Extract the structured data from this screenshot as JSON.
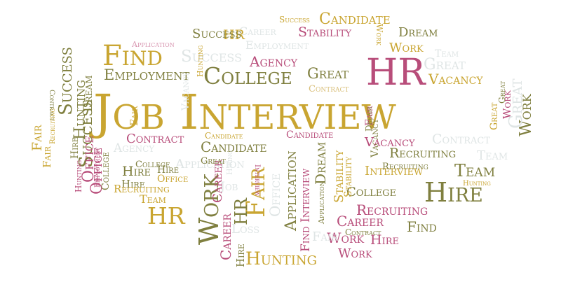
{
  "colors": {
    "gold": "#c9a531",
    "olive": "#7f7f3f",
    "rose": "#b84d7a",
    "pink": "#d896b0",
    "pale": "#dfe5e5",
    "sand": "#d9bf7a",
    "khaki": "#b8b070"
  },
  "cloud": {
    "words": [
      {
        "text": "Job Interview",
        "color": "gold"
      },
      {
        "text": "HR",
        "color": "rose"
      },
      {
        "text": "Find",
        "color": "gold"
      },
      {
        "text": "College",
        "color": "olive"
      },
      {
        "text": "Employment",
        "color": "olive"
      },
      {
        "text": "Hire",
        "color": "olive"
      },
      {
        "text": "Team",
        "color": "olive"
      },
      {
        "text": "Work",
        "color": "olive"
      },
      {
        "text": "HR",
        "color": "gold"
      },
      {
        "text": "Hunting",
        "color": "gold"
      },
      {
        "text": "Fair",
        "color": "gold"
      },
      {
        "text": "Candidate",
        "color": "gold"
      },
      {
        "text": "Stability",
        "color": "rose"
      },
      {
        "text": "Dream",
        "color": "olive"
      },
      {
        "text": "Work",
        "color": "gold"
      },
      {
        "text": "Agency",
        "color": "rose"
      },
      {
        "text": "Great",
        "color": "olive"
      },
      {
        "text": "Vacancy",
        "color": "gold"
      },
      {
        "text": "Recruiting",
        "color": "olive"
      },
      {
        "text": "Recruiting",
        "color": "rose"
      },
      {
        "text": "Interview",
        "color": "gold"
      },
      {
        "text": "College",
        "color": "olive"
      },
      {
        "text": "Candidate",
        "color": "olive"
      },
      {
        "text": "Contract",
        "color": "rose"
      },
      {
        "text": "Success",
        "color": "olive"
      },
      {
        "text": "Office",
        "color": "rose"
      },
      {
        "text": "Hunting",
        "color": "olive"
      },
      {
        "text": "Dream",
        "color": "olive"
      },
      {
        "text": "Find",
        "color": "olive"
      },
      {
        "text": "Career",
        "color": "rose"
      },
      {
        "text": "Hire",
        "color": "rose"
      },
      {
        "text": "Work",
        "color": "rose"
      },
      {
        "text": "Application",
        "color": "olive"
      },
      {
        "text": "Find Interview",
        "color": "rose"
      },
      {
        "text": "Stability",
        "color": "gold"
      },
      {
        "text": "Dream",
        "color": "olive"
      },
      {
        "text": "HR",
        "color": "olive"
      },
      {
        "text": "Career",
        "color": "rose"
      },
      {
        "text": "Hire",
        "color": "olive"
      },
      {
        "text": "Fair",
        "color": "gold"
      },
      {
        "text": "Work",
        "color": "olive"
      },
      {
        "text": "Great",
        "color": "pale"
      },
      {
        "text": "Work",
        "color": "rose"
      },
      {
        "text": "Hiring",
        "color": "pale"
      },
      {
        "text": "Success",
        "color": "pale"
      },
      {
        "text": "Agency",
        "color": "pale"
      },
      {
        "text": "Application",
        "color": "pale"
      },
      {
        "text": "Contract",
        "color": "pale"
      },
      {
        "text": "Team",
        "color": "pale"
      },
      {
        "text": "Great",
        "color": "pale"
      },
      {
        "text": "Vacancy",
        "color": "pale"
      },
      {
        "text": "Career",
        "color": "pale"
      },
      {
        "text": "Employment",
        "color": "pale"
      },
      {
        "text": "Job",
        "color": "pale"
      },
      {
        "text": "Loss",
        "color": "pale"
      },
      {
        "text": "Office",
        "color": "pale"
      },
      {
        "text": "Fair",
        "color": "pale"
      },
      {
        "text": "Team",
        "color": "pale"
      },
      {
        "text": "Success",
        "color": "gold"
      },
      {
        "text": "HR",
        "color": "gold"
      },
      {
        "text": "Application",
        "color": "pink"
      },
      {
        "text": "Success",
        "color": "olive"
      },
      {
        "text": "Candidate",
        "color": "gold"
      },
      {
        "text": "Contract",
        "color": "sand"
      },
      {
        "text": "Success",
        "color": "olive"
      },
      {
        "text": "Hire",
        "color": "olive"
      },
      {
        "text": "Fair",
        "color": "gold"
      },
      {
        "text": "Vacancy",
        "color": "olive"
      },
      {
        "text": "Hunting",
        "color": "rose"
      },
      {
        "text": "College",
        "color": "olive"
      },
      {
        "text": "Office",
        "color": "rose"
      },
      {
        "text": "College",
        "color": "olive"
      },
      {
        "text": "Hire",
        "color": "olive"
      },
      {
        "text": "Office",
        "color": "gold"
      },
      {
        "text": "Recruiting",
        "color": "gold"
      },
      {
        "text": "Team",
        "color": "gold"
      },
      {
        "text": "Employment",
        "color": "rose"
      },
      {
        "text": "Fair",
        "color": "rose"
      },
      {
        "text": "Career",
        "color": "rose"
      },
      {
        "text": "Hire",
        "color": "olive"
      },
      {
        "text": "Candidate",
        "color": "rose"
      },
      {
        "text": "Contract",
        "color": "olive"
      },
      {
        "text": "Great",
        "color": "olive"
      },
      {
        "text": "Dream",
        "color": "olive"
      },
      {
        "text": "Hunting",
        "color": "gold"
      },
      {
        "text": "Vacancy",
        "color": "rose"
      },
      {
        "text": "Interview",
        "color": "rose"
      },
      {
        "text": "Application",
        "color": "olive"
      },
      {
        "text": "Recruiting",
        "color": "olive"
      },
      {
        "text": "Hunting",
        "color": "gold"
      },
      {
        "text": "Contract",
        "color": "olive"
      },
      {
        "text": "Fair",
        "color": "gold"
      },
      {
        "text": "Work",
        "color": "gold"
      },
      {
        "text": "Great",
        "color": "gold"
      },
      {
        "text": "Hire",
        "color": "olive"
      },
      {
        "text": "Stability",
        "color": "gold"
      },
      {
        "text": "Recruiting",
        "color": "gold"
      },
      {
        "text": "Great",
        "color": "olive"
      },
      {
        "text": "Work",
        "color": "rose"
      }
    ]
  }
}
